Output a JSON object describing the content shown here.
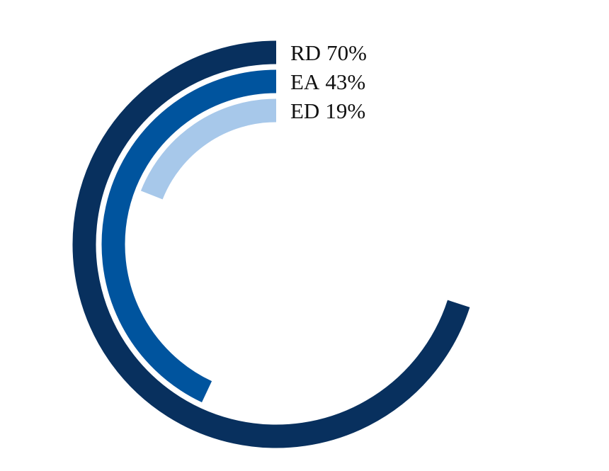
{
  "chart_data": {
    "type": "radial-bar",
    "categories": [
      "RD",
      "EA",
      "ED"
    ],
    "values": [
      70,
      43,
      19
    ],
    "value_labels": [
      "70%",
      "43%",
      "19%"
    ],
    "colors": [
      "#08305e",
      "#00549e",
      "#a7c8ea"
    ],
    "ylim": [
      0,
      100
    ]
  }
}
